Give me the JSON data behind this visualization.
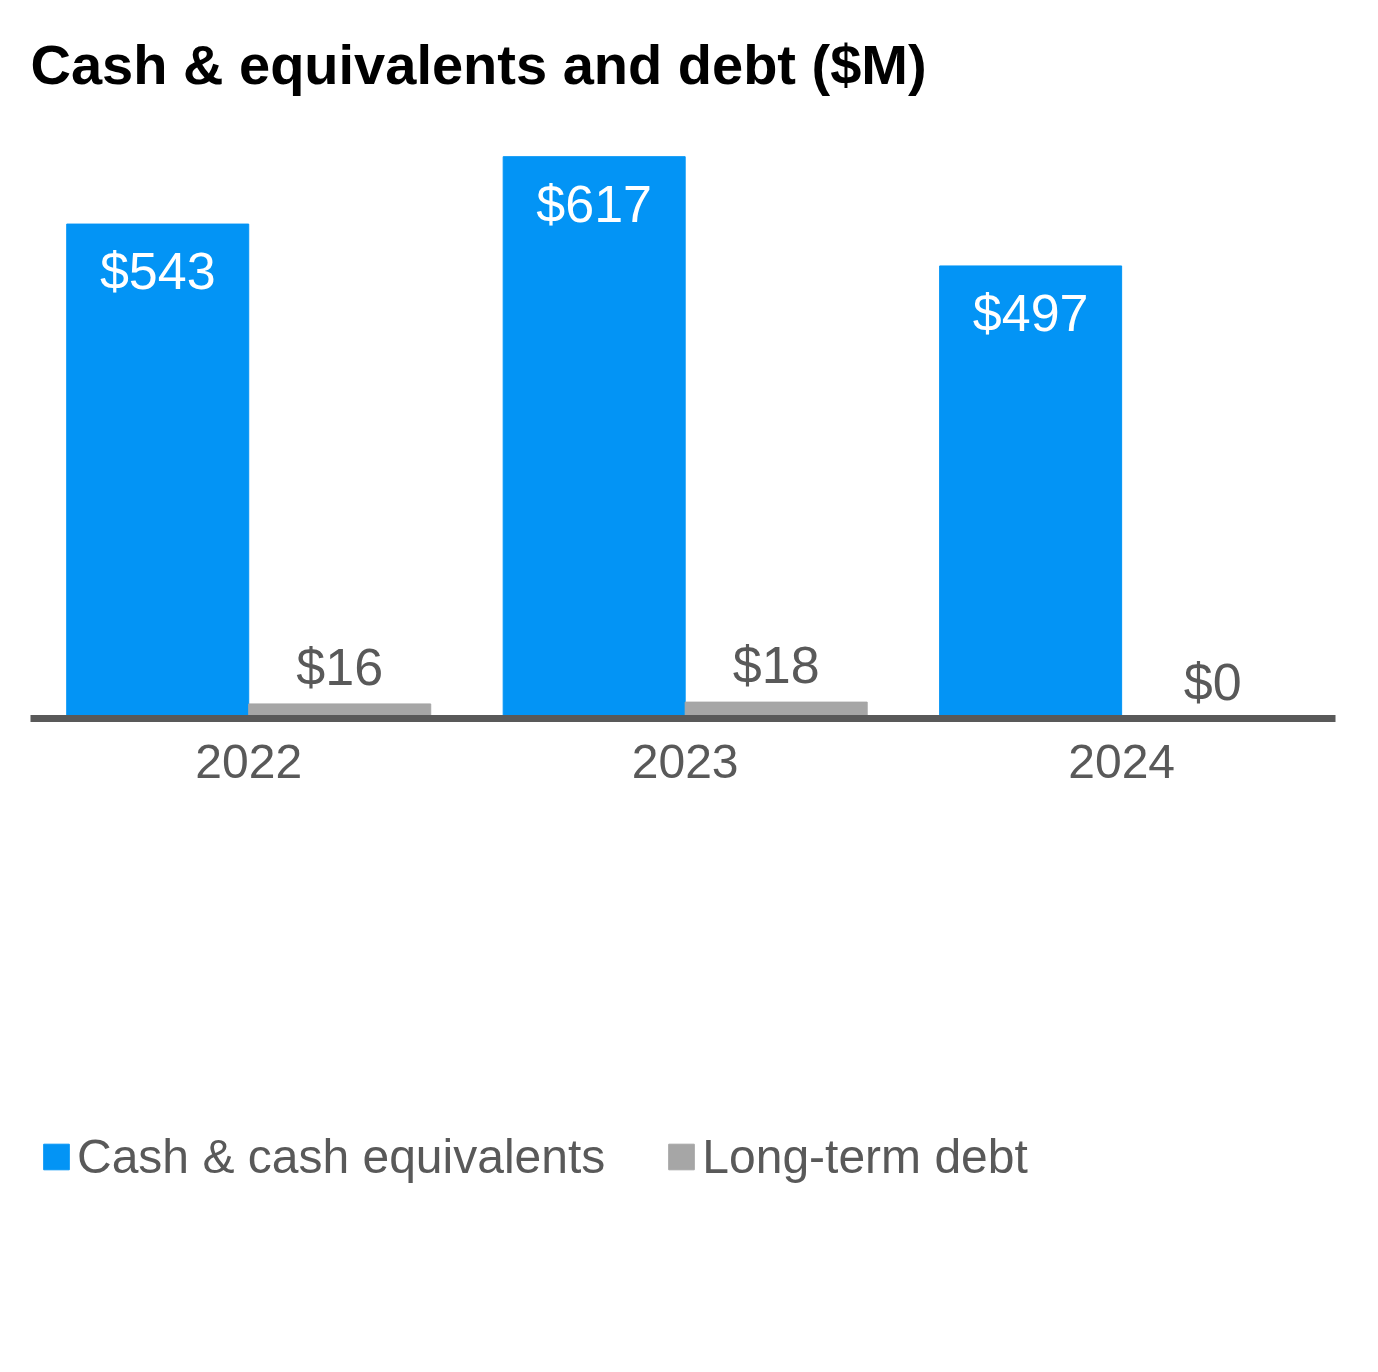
{
  "chart_data": {
    "type": "bar",
    "title": "Cash & equivalents and debt ($M)",
    "categories": [
      "2022",
      "2023",
      "2024"
    ],
    "series": [
      {
        "name": "Cash & cash equivalents",
        "color": "#0394f5",
        "values": [
          543,
          617,
          497
        ],
        "value_labels": [
          "$543",
          "$617",
          "$497"
        ]
      },
      {
        "name": "Long-term debt",
        "color": "#a6a6a6",
        "values": [
          16,
          18,
          0
        ],
        "value_labels": [
          "$16",
          "$18",
          "$0"
        ]
      }
    ],
    "legend": "bottom",
    "grid": false,
    "tick_labels": "x"
  }
}
